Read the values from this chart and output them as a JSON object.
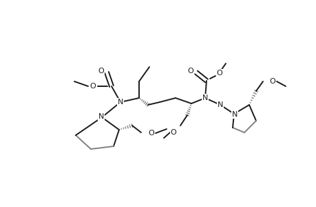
{
  "bg": "#ffffff",
  "fg": "#1a1a1a",
  "sg": "#808080",
  "lw": 1.4,
  "fs": 8,
  "figsize": [
    4.6,
    3.0
  ],
  "dpi": 100,
  "xlim": [
    0,
    460
  ],
  "ylim": [
    0,
    300
  ]
}
